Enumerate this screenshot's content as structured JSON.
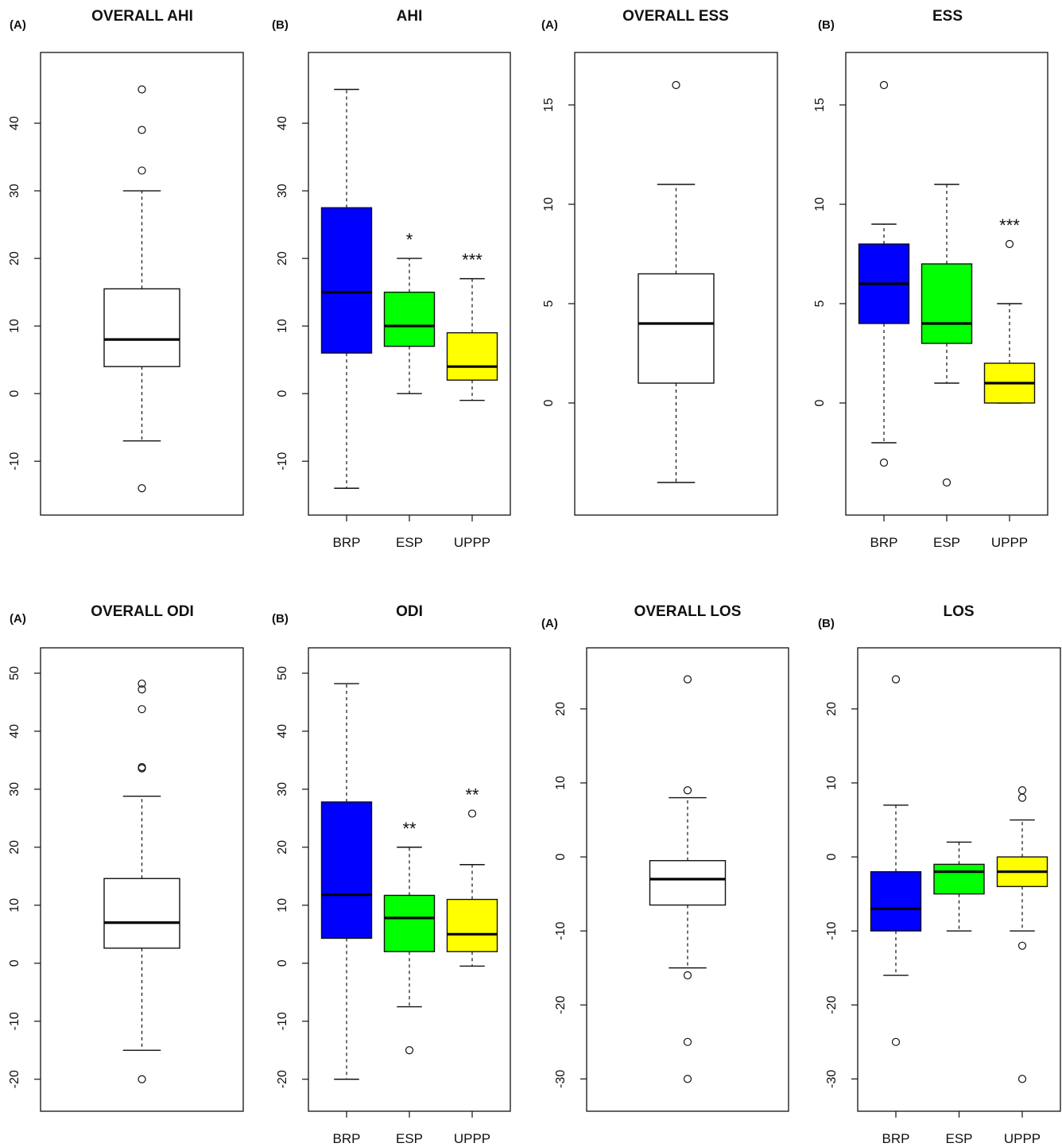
{
  "chart_data": [
    {
      "type": "box",
      "panel_label": "(A)",
      "title": "OVERALL AHI",
      "xlabel": "",
      "ylabel": "",
      "yticks": [
        -10,
        0,
        10,
        20,
        30,
        40
      ],
      "ylim": [
        -15.5,
        48
      ],
      "categories": [],
      "colors": [
        "#ffffff"
      ],
      "significance": [
        ""
      ],
      "boxes": [
        {
          "lower_whisker": -7,
          "q1": 4,
          "median": 8,
          "q3": 15.5,
          "upper_whisker": 30,
          "outliers": [
            45,
            39,
            33,
            -14
          ]
        }
      ]
    },
    {
      "type": "box",
      "panel_label": "(B)",
      "title": "AHI",
      "xlabel": "",
      "ylabel": "",
      "yticks": [
        -10,
        0,
        10,
        20,
        30,
        40
      ],
      "ylim": [
        -15.5,
        48
      ],
      "categories": [
        "BRP",
        "ESP",
        "UPPP"
      ],
      "colors": [
        "#0000ff",
        "#00ff00",
        "#ffff00"
      ],
      "significance": [
        "",
        "*",
        "***"
      ],
      "boxes": [
        {
          "lower_whisker": -14,
          "q1": 6,
          "median": 15,
          "q3": 27.5,
          "upper_whisker": 45,
          "outliers": []
        },
        {
          "lower_whisker": 0,
          "q1": 7,
          "median": 10,
          "q3": 15,
          "upper_whisker": 20,
          "outliers": []
        },
        {
          "lower_whisker": -1,
          "q1": 2,
          "median": 4,
          "q3": 9,
          "upper_whisker": 17,
          "outliers": []
        }
      ]
    },
    {
      "type": "box",
      "panel_label": "(A)",
      "title": "OVERALL ESS",
      "xlabel": "",
      "ylabel": "",
      "yticks": [
        0,
        5,
        10,
        15
      ],
      "ylim": [
        -4.8,
        16.8
      ],
      "categories": [],
      "colors": [
        "#ffffff"
      ],
      "significance": [
        ""
      ],
      "boxes": [
        {
          "lower_whisker": -4,
          "q1": 1,
          "median": 4,
          "q3": 6.5,
          "upper_whisker": 11,
          "outliers": [
            16
          ]
        }
      ]
    },
    {
      "type": "box",
      "panel_label": "(B)",
      "title": "ESS",
      "xlabel": "",
      "ylabel": "",
      "yticks": [
        0,
        5,
        10,
        15
      ],
      "ylim": [
        -4.8,
        16.8
      ],
      "categories": [
        "BRP",
        "ESP",
        "UPPP"
      ],
      "colors": [
        "#0000ff",
        "#00ff00",
        "#ffff00"
      ],
      "significance": [
        "",
        "",
        "***"
      ],
      "boxes": [
        {
          "lower_whisker": -2,
          "q1": 4,
          "median": 6,
          "q3": 8,
          "upper_whisker": 9,
          "outliers": [
            16,
            -3
          ]
        },
        {
          "lower_whisker": 1,
          "q1": 3,
          "median": 4,
          "q3": 7,
          "upper_whisker": 11,
          "outliers": [
            -4
          ]
        },
        {
          "lower_whisker": 0,
          "q1": 0,
          "median": 1,
          "q3": 2,
          "upper_whisker": 5,
          "outliers": [
            8
          ]
        }
      ]
    },
    {
      "type": "box",
      "panel_label": "(A)",
      "title": "OVERALL ODI",
      "xlabel": "",
      "ylabel": "",
      "yticks": [
        -20,
        -10,
        0,
        10,
        20,
        30,
        40,
        50
      ],
      "ylim": [
        -22.5,
        51.5
      ],
      "categories": [],
      "colors": [
        "#ffffff"
      ],
      "significance": [
        ""
      ],
      "boxes": [
        {
          "lower_whisker": -15,
          "q1": 2.6,
          "median": 7,
          "q3": 14.6,
          "upper_whisker": 28.8,
          "outliers": [
            48.2,
            47.2,
            43.8,
            33.8,
            33.6,
            -20
          ]
        }
      ]
    },
    {
      "type": "box",
      "panel_label": "(B)",
      "title": "ODI",
      "xlabel": "",
      "ylabel": "",
      "yticks": [
        -20,
        -10,
        0,
        10,
        20,
        30,
        40,
        50
      ],
      "ylim": [
        -22.5,
        51.5
      ],
      "categories": [
        "BRP",
        "ESP",
        "UPPP"
      ],
      "colors": [
        "#0000ff",
        "#00ff00",
        "#ffff00"
      ],
      "significance": [
        "",
        "**",
        "**"
      ],
      "boxes": [
        {
          "lower_whisker": -20,
          "q1": 4.3,
          "median": 11.8,
          "q3": 27.8,
          "upper_whisker": 48.2,
          "outliers": []
        },
        {
          "lower_whisker": -7.5,
          "q1": 2,
          "median": 7.8,
          "q3": 11.7,
          "upper_whisker": 20,
          "outliers": [
            -15
          ]
        },
        {
          "lower_whisker": -0.5,
          "q1": 2,
          "median": 5,
          "q3": 11,
          "upper_whisker": 17,
          "outliers": [
            25.8
          ]
        }
      ]
    },
    {
      "type": "box",
      "panel_label": "(A)",
      "title": "OVERALL LOS",
      "xlabel": "",
      "ylabel": "",
      "yticks": [
        -30,
        -20,
        -10,
        0,
        10,
        20
      ],
      "ylim": [
        -32,
        26
      ],
      "categories": [],
      "colors": [
        "#ffffff"
      ],
      "significance": [
        ""
      ],
      "boxes": [
        {
          "lower_whisker": -15,
          "q1": -6.5,
          "median": -3,
          "q3": -0.5,
          "upper_whisker": 8,
          "outliers": [
            24,
            9,
            -16,
            -25,
            -30
          ]
        }
      ]
    },
    {
      "type": "box",
      "panel_label": "(B)",
      "title": "LOS",
      "xlabel": "",
      "ylabel": "",
      "yticks": [
        -30,
        -20,
        -10,
        0,
        10,
        20
      ],
      "ylim": [
        -32,
        26
      ],
      "categories": [
        "BRP",
        "ESP",
        "UPPP"
      ],
      "colors": [
        "#0000ff",
        "#00ff00",
        "#ffff00"
      ],
      "significance": [
        "",
        "",
        ""
      ],
      "boxes": [
        {
          "lower_whisker": -16,
          "q1": -10,
          "median": -7,
          "q3": -2,
          "upper_whisker": 7,
          "outliers": [
            24,
            -25
          ]
        },
        {
          "lower_whisker": -10,
          "q1": -5,
          "median": -2,
          "q3": -1,
          "upper_whisker": 2,
          "outliers": []
        },
        {
          "lower_whisker": -10,
          "q1": -4,
          "median": -2,
          "q3": 0,
          "upper_whisker": 5,
          "outliers": [
            9,
            8,
            -12,
            -30
          ]
        }
      ]
    }
  ]
}
